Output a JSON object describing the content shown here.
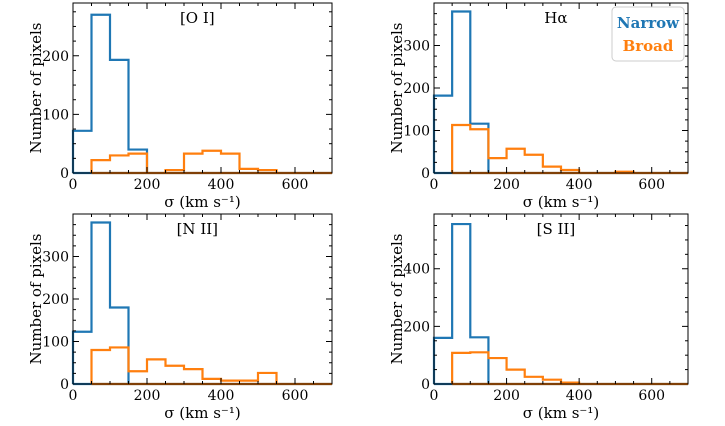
{
  "chart_data": [
    {
      "type": "histogram-step",
      "title": "[O I]",
      "xlabel": "σ (km s⁻¹)",
      "ylabel": "Number of pixels",
      "xlim": [
        0,
        700
      ],
      "ylim": [
        0,
        290
      ],
      "xticks": [
        0,
        200,
        400,
        600
      ],
      "yticks": [
        0,
        100,
        200
      ],
      "bin_edges": [
        0,
        50,
        100,
        150,
        200,
        250,
        300,
        350,
        400,
        450,
        500,
        550,
        600,
        650,
        700
      ],
      "series": [
        {
          "name": "Narrow",
          "color": "#1f77b4",
          "values": [
            72,
            270,
            193,
            40,
            0,
            0,
            0,
            0,
            0,
            0,
            0,
            0,
            0,
            0
          ]
        },
        {
          "name": "Broad",
          "color": "#ff7f0e",
          "values": [
            0,
            22,
            30,
            33,
            0,
            5,
            33,
            38,
            33,
            7,
            5,
            0,
            0,
            0
          ]
        }
      ]
    },
    {
      "type": "histogram-step",
      "title": "Hα",
      "xlabel": "σ (km s⁻¹)",
      "ylabel": "Number of pixels",
      "xlim": [
        0,
        700
      ],
      "ylim": [
        0,
        400
      ],
      "xticks": [
        0,
        200,
        400,
        600
      ],
      "yticks": [
        0,
        100,
        200,
        300
      ],
      "bin_edges": [
        0,
        50,
        100,
        150,
        200,
        250,
        300,
        350,
        400,
        450,
        500,
        550,
        600,
        650,
        700
      ],
      "series": [
        {
          "name": "Narrow",
          "color": "#1f77b4",
          "values": [
            182,
            380,
            116,
            0,
            0,
            0,
            0,
            0,
            0,
            0,
            0,
            0,
            0,
            0
          ]
        },
        {
          "name": "Broad",
          "color": "#ff7f0e",
          "values": [
            0,
            113,
            103,
            35,
            57,
            43,
            15,
            7,
            0,
            0,
            3,
            0,
            0,
            0
          ]
        }
      ],
      "legend": {
        "position": "top-right",
        "entries": [
          "Narrow",
          "Broad"
        ]
      }
    },
    {
      "type": "histogram-step",
      "title": "[N II]",
      "xlabel": "σ (km s⁻¹)",
      "ylabel": "Number of pixels",
      "xlim": [
        0,
        700
      ],
      "ylim": [
        0,
        400
      ],
      "xticks": [
        0,
        200,
        400,
        600
      ],
      "yticks": [
        0,
        100,
        200,
        300
      ],
      "bin_edges": [
        0,
        50,
        100,
        150,
        200,
        250,
        300,
        350,
        400,
        450,
        500,
        550,
        600,
        650,
        700
      ],
      "series": [
        {
          "name": "Narrow",
          "color": "#1f77b4",
          "values": [
            123,
            380,
            180,
            0,
            0,
            0,
            0,
            0,
            0,
            0,
            0,
            0,
            0,
            0
          ]
        },
        {
          "name": "Broad",
          "color": "#ff7f0e",
          "values": [
            0,
            80,
            86,
            30,
            58,
            43,
            35,
            12,
            8,
            8,
            26,
            0,
            0,
            0
          ]
        }
      ]
    },
    {
      "type": "histogram-step",
      "title": "[S II]",
      "xlabel": "σ (km s⁻¹)",
      "ylabel": "Number of pixels",
      "xlim": [
        0,
        700
      ],
      "ylim": [
        0,
        590
      ],
      "xticks": [
        0,
        200,
        400,
        600
      ],
      "yticks": [
        0,
        200,
        400
      ],
      "bin_edges": [
        0,
        50,
        100,
        150,
        200,
        250,
        300,
        350,
        400,
        450,
        500,
        550,
        600,
        650,
        700
      ],
      "series": [
        {
          "name": "Narrow",
          "color": "#1f77b4",
          "values": [
            160,
            555,
            162,
            0,
            0,
            0,
            0,
            0,
            0,
            0,
            0,
            0,
            0,
            0
          ]
        },
        {
          "name": "Broad",
          "color": "#ff7f0e",
          "values": [
            0,
            108,
            110,
            90,
            50,
            25,
            15,
            5,
            0,
            0,
            0,
            0,
            0,
            0
          ]
        }
      ]
    }
  ]
}
